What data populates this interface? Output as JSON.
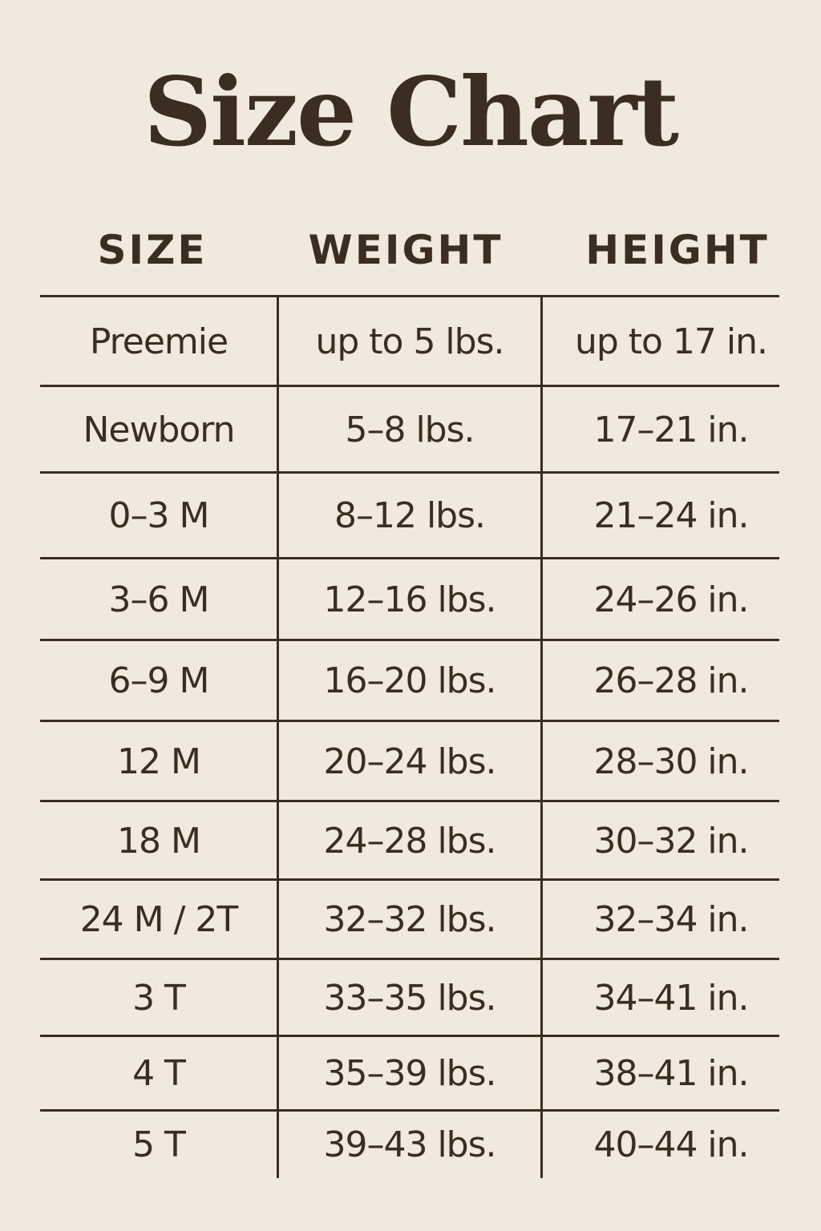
{
  "title": "Size Chart",
  "colors": {
    "background": "#f1e9de",
    "text": "#3b2d22"
  },
  "table": {
    "headers": [
      "SIZE",
      "WEIGHT",
      "HEIGHT"
    ],
    "rows": [
      [
        "Preemie",
        "up to 5 lbs.",
        "up to 17 in."
      ],
      [
        "Newborn",
        "5–8 lbs.",
        "17–21 in."
      ],
      [
        "0–3 M",
        "8–12 lbs.",
        "21–24 in."
      ],
      [
        "3–6 M",
        "12–16 lbs.",
        "24–26 in."
      ],
      [
        "6–9 M",
        "16–20 lbs.",
        "26–28 in."
      ],
      [
        "12 M",
        "20–24 lbs.",
        "28–30 in."
      ],
      [
        "18 M",
        "24–28 lbs.",
        "30–32 in."
      ],
      [
        "24 M / 2T",
        "32–32 lbs.",
        "32–34 in."
      ],
      [
        "3 T",
        "33–35 lbs.",
        "34–41 in."
      ],
      [
        "4 T",
        "35–39 lbs.",
        "38–41 in."
      ],
      [
        "5 T",
        "39–43 lbs.",
        "40–44 in."
      ]
    ]
  }
}
